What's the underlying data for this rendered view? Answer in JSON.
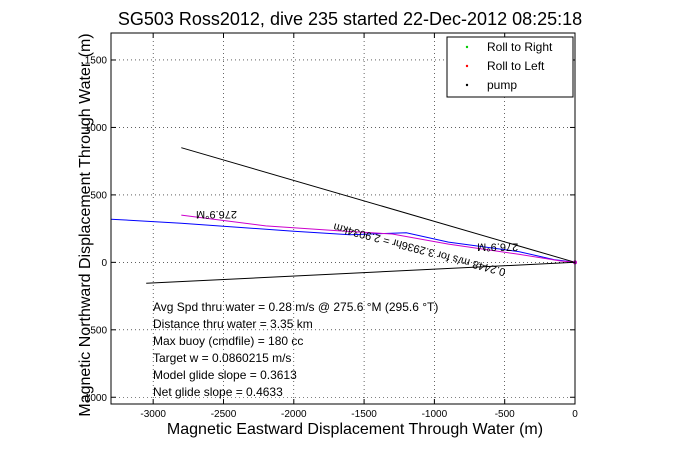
{
  "chart_data": {
    "type": "line",
    "title": "SG503 Ross2012, dive 235 started 22-Dec-2012 08:25:18",
    "xlabel": "Magnetic Eastward Displacement Through Water (m)",
    "ylabel": "Magnetic Northward Displacement Through Water (m)",
    "xlim": [
      -3300,
      0
    ],
    "ylim": [
      -1050,
      1700
    ],
    "xticks": [
      -3000,
      -2500,
      -2000,
      -1500,
      -1000,
      -500,
      0
    ],
    "yticks": [
      -1000,
      -500,
      0,
      500,
      1000,
      1500
    ],
    "grid": true,
    "legend_position": "top-right",
    "legend": [
      {
        "label": "Roll to Right",
        "color": "#00cc00"
      },
      {
        "label": "Roll to Left",
        "color": "#ff0000"
      },
      {
        "label": "pump",
        "color": "#000000"
      }
    ],
    "series": [
      {
        "name": "",
        "color": "#0000ff",
        "x": [
          -3300,
          -2800,
          -2000,
          -1600,
          -1200,
          -900,
          -400,
          -150,
          0
        ],
        "y": [
          320,
          290,
          230,
          205,
          220,
          150,
          80,
          20,
          0
        ]
      },
      {
        "name": "",
        "color": "#cc00cc",
        "x": [
          -2800,
          -2200,
          -1700,
          -1300,
          -900,
          -400,
          -100,
          0
        ],
        "y": [
          350,
          270,
          235,
          210,
          135,
          60,
          10,
          0
        ]
      },
      {
        "name": "",
        "color": "#000000",
        "x": [
          -2800,
          0
        ],
        "y": [
          850,
          0
        ]
      },
      {
        "name": "",
        "color": "#000000",
        "x": [
          -3050,
          0
        ],
        "y": [
          -155,
          0
        ]
      }
    ],
    "annotations": [
      "276.9°M",
      "276.9°M",
      "0.2448 m/s for 3.2936hr = 2.9034km"
    ],
    "stats": [
      "Avg Spd thru water =  0.28 m/s @ 275.6   °M (295.6 °T)",
      "Distance thru water =  3.35 km",
      "Max buoy (cmdfile) = 180 cc",
      "Target w = 0.0860215 m/s",
      "Model glide slope = 0.3613",
      "Net glide slope = 0.4633"
    ]
  }
}
